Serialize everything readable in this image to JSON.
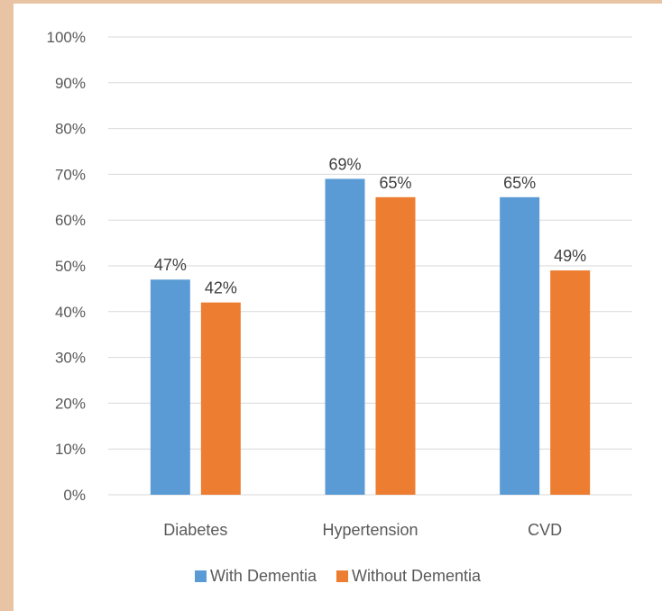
{
  "chart_data": {
    "type": "bar",
    "categories": [
      "Diabetes",
      "Hypertension",
      "CVD"
    ],
    "series": [
      {
        "name": "With Dementia",
        "values": [
          47,
          69,
          65
        ],
        "labels": [
          "47%",
          "69%",
          "65%"
        ],
        "color": "#5b9bd5"
      },
      {
        "name": "Without Dementia",
        "values": [
          42,
          65,
          49
        ],
        "labels": [
          "42%",
          "65%",
          "49%"
        ],
        "color": "#ed7d31"
      }
    ],
    "y_ticks": [
      "0%",
      "10%",
      "20%",
      "30%",
      "40%",
      "50%",
      "60%",
      "70%",
      "80%",
      "90%",
      "100%"
    ],
    "ylim": [
      0,
      100
    ],
    "title": "",
    "xlabel": "",
    "ylabel": "",
    "grid": true,
    "legend_position": "bottom",
    "colors": {
      "background": "#e8c4a4",
      "plot_background": "#ffffff",
      "gridline": "#d9d9d9",
      "text": "#595959"
    }
  }
}
